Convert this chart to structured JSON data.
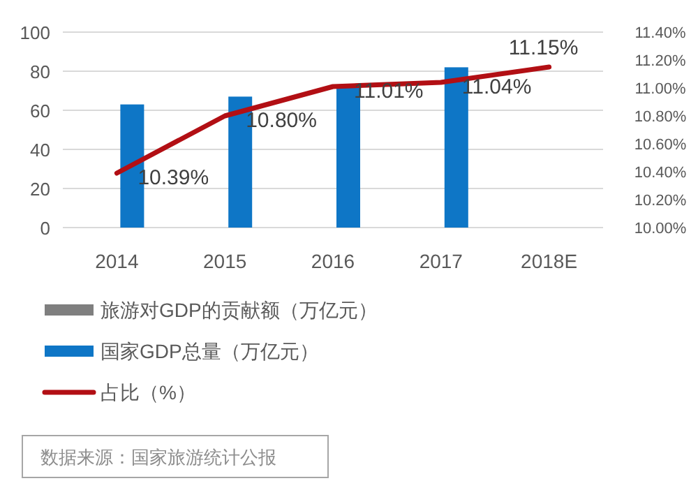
{
  "chart_data": {
    "type": "bar",
    "categories": [
      "2014",
      "2015",
      "2016",
      "2017",
      "2018E"
    ],
    "series": [
      {
        "name": "旅游对GDP的贡献额（万亿元）",
        "color": "#7f7f7f",
        "values": [
          null,
          null,
          null,
          null,
          null
        ]
      },
      {
        "name": "国家GDP总量（万亿元）",
        "color": "#0e76c6",
        "values": [
          63,
          67,
          73,
          82,
          null
        ]
      },
      {
        "name": "占比（%）",
        "type": "line",
        "axis": "y2",
        "color": "#b20f14",
        "values": [
          10.39,
          10.8,
          11.01,
          11.04,
          11.15
        ],
        "value_labels": [
          "10.39%",
          "10.80%",
          "11.01%",
          "11.04%",
          "11.15%"
        ]
      }
    ],
    "ylim": [
      0,
      100
    ],
    "yticks": [
      0,
      20,
      40,
      60,
      80,
      100
    ],
    "y2lim": [
      10.0,
      11.4
    ],
    "y2ticks": [
      {
        "value": 10.0,
        "label": "10.00%"
      },
      {
        "value": 10.2,
        "label": "10.20%"
      },
      {
        "value": 10.4,
        "label": "10.40%"
      },
      {
        "value": 10.6,
        "label": "10.60%"
      },
      {
        "value": 10.8,
        "label": "10.80%"
      },
      {
        "value": 11.0,
        "label": "11.00%"
      },
      {
        "value": 11.2,
        "label": "11.20%"
      },
      {
        "value": 11.4,
        "label": "11.40%"
      }
    ],
    "grid": "y",
    "legend": "bottom",
    "line_style": "solid",
    "marker": "none",
    "annotations": [
      "数据来源：国家旅游统计公报"
    ]
  }
}
